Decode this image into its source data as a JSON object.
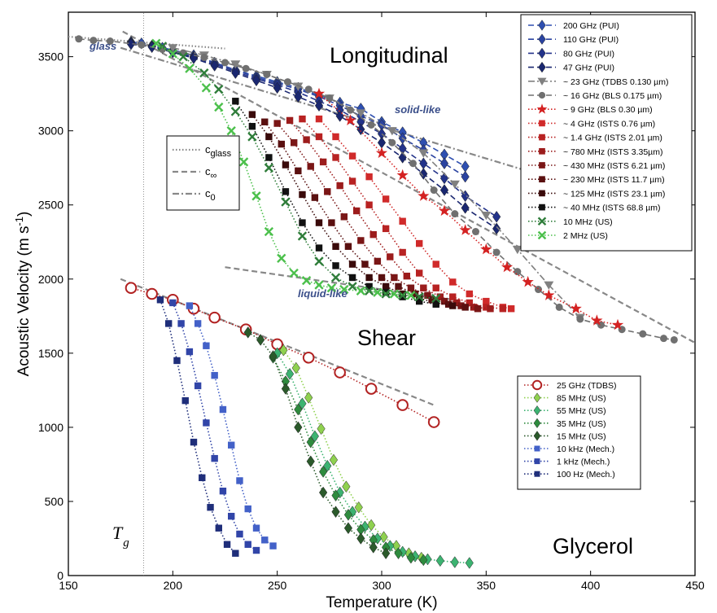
{
  "chart_data": {
    "type": "scatter",
    "xlabel": "Temperature  (K)",
    "ylabel_main": "Acoustic Velocity  (m s",
    "ylabel_sup": "-1",
    "ylabel_close": ")",
    "xlim": [
      150,
      450
    ],
    "ylim": [
      0,
      3800
    ],
    "xticks": [
      150,
      200,
      250,
      300,
      350,
      400,
      450
    ],
    "yticks": [
      0,
      500,
      1000,
      1500,
      2000,
      2500,
      3000,
      3500
    ],
    "grid": false,
    "labels": {
      "longitudinal": "Longitudinal",
      "shear": "Shear",
      "glycerol": "Glycerol",
      "glass": "glass",
      "solid_like": "solid-like",
      "liquid_like": "liquid-like",
      "tg_main": "T",
      "tg_sub": "g"
    },
    "tg": 186,
    "reference_lines": [
      {
        "name": "c_glass",
        "style": "dotted",
        "points": [
          [
            150,
            3635
          ],
          [
            225,
            3555
          ]
        ]
      },
      {
        "name": "c_inf_longitudinal",
        "style": "dashed",
        "points": [
          [
            176,
            3670
          ],
          [
            450,
            1570
          ]
        ]
      },
      {
        "name": "c_inf_shear",
        "style": "dashed",
        "points": [
          [
            175,
            2000
          ],
          [
            325,
            1150
          ]
        ]
      },
      {
        "name": "c_0",
        "style": "dashdot",
        "points": [
          [
            175,
            3560
          ],
          [
            400,
            2600
          ]
        ]
      },
      {
        "name": "liquid_like_line",
        "style": "dashed",
        "points": [
          [
            225,
            2080
          ],
          [
            335,
            1860
          ]
        ]
      }
    ],
    "line_legend": [
      {
        "label_main": "c",
        "label_sub": "glass",
        "style": "dotted"
      },
      {
        "label_main": "c",
        "label_sub": "∞",
        "style": "dashed"
      },
      {
        "label_main": "c",
        "label_sub": "0",
        "style": "dashdot"
      }
    ],
    "series": [
      {
        "name": "200 GHz  (PUI)",
        "group": "long",
        "color": "#2e4fb0",
        "marker": "diamond",
        "line": "dashed",
        "x": [
          180,
          185,
          190,
          195,
          200,
          210,
          220,
          230,
          240,
          250,
          260,
          270,
          280,
          290,
          300,
          310,
          320,
          330,
          340
        ],
        "y": [
          3600,
          3590,
          3575,
          3560,
          3545,
          3510,
          3460,
          3410,
          3370,
          3330,
          3290,
          3240,
          3190,
          3150,
          3060,
          2990,
          2920,
          2840,
          2760
        ]
      },
      {
        "name": "110 GHz  (PUI)",
        "group": "long",
        "color": "#2a43a0",
        "marker": "diamond",
        "line": "dashed",
        "x": [
          180,
          190,
          200,
          210,
          220,
          230,
          240,
          250,
          260,
          270,
          280,
          290,
          300,
          310,
          320,
          330,
          340
        ],
        "y": [
          3595,
          3570,
          3540,
          3500,
          3460,
          3410,
          3360,
          3320,
          3280,
          3230,
          3170,
          3100,
          3040,
          2950,
          2870,
          2780,
          2690
        ]
      },
      {
        "name": "80 GHz  (PUI)",
        "group": "long",
        "color": "#23338a",
        "marker": "diamond",
        "line": "dashed",
        "x": [
          180,
          190,
          200,
          210,
          220,
          230,
          240,
          250,
          260,
          270,
          280,
          290,
          300,
          310,
          320,
          330,
          340,
          355
        ],
        "y": [
          3590,
          3570,
          3535,
          3495,
          3450,
          3400,
          3350,
          3310,
          3260,
          3200,
          3140,
          3060,
          2980,
          2880,
          2780,
          2680,
          2560,
          2420
        ]
      },
      {
        "name": "47 GHz  (PUI)",
        "group": "long",
        "color": "#1a2770",
        "marker": "diamond",
        "line": "dashed",
        "x": [
          180,
          190,
          200,
          210,
          220,
          230,
          240,
          250,
          260,
          270,
          280,
          290,
          300,
          310,
          320,
          330,
          340,
          355
        ],
        "y": [
          3585,
          3565,
          3530,
          3490,
          3440,
          3390,
          3340,
          3290,
          3230,
          3170,
          3100,
          3010,
          2920,
          2820,
          2710,
          2600,
          2480,
          2340
        ]
      },
      {
        "name": "~ 23 GHz  (TDBS 0.130 µm)",
        "group": "long",
        "color": "#808080",
        "marker": "triangle",
        "line": "dashdot",
        "x": [
          200,
          215,
          230,
          245,
          260,
          275,
          290,
          305,
          320,
          335,
          350,
          365,
          380,
          395
        ],
        "y": [
          3560,
          3510,
          3450,
          3380,
          3300,
          3220,
          3120,
          3000,
          2850,
          2640,
          2430,
          2200,
          1960,
          1740
        ]
      },
      {
        "name": "~ 16 GHz  (BLS 0.175 µm)",
        "group": "long",
        "color": "#707070",
        "marker": "circle",
        "line": "dashed",
        "x": [
          155,
          162,
          170,
          185,
          195,
          205,
          215,
          225,
          235,
          245,
          255,
          265,
          275,
          285,
          295,
          305,
          315,
          325,
          335,
          345,
          355,
          365,
          375,
          385,
          395,
          405,
          415,
          425,
          435,
          440
        ],
        "y": [
          3620,
          3610,
          3605,
          3580,
          3550,
          3525,
          3495,
          3460,
          3420,
          3380,
          3330,
          3280,
          3220,
          3140,
          3040,
          2920,
          2780,
          2600,
          2440,
          2320,
          2180,
          2050,
          1930,
          1810,
          1730,
          1690,
          1660,
          1630,
          1600,
          1590
        ]
      },
      {
        "name": "~ 9 GHz  (BLS 0.30 µm)",
        "group": "long",
        "color": "#d42222",
        "marker": "star",
        "line": "dotted",
        "x": [
          270,
          285,
          300,
          310,
          320,
          330,
          340,
          350,
          360,
          370,
          380,
          393,
          403,
          413
        ],
        "y": [
          3250,
          3070,
          2850,
          2700,
          2560,
          2460,
          2330,
          2200,
          2080,
          1980,
          1890,
          1800,
          1720,
          1690
        ]
      },
      {
        "name": "~ 4 GHz  (ISTS 0.76 µm)",
        "group": "long",
        "color": "#d02a2a",
        "marker": "square",
        "line": "dotted",
        "x": [
          270,
          278,
          286,
          294,
          302,
          310,
          318,
          326,
          334,
          342,
          350,
          358,
          362
        ],
        "y": [
          3080,
          2960,
          2830,
          2690,
          2540,
          2390,
          2240,
          2100,
          1980,
          1900,
          1850,
          1810,
          1800
        ]
      },
      {
        "name": "~ 1.4 GHz  (ISTS 2.01 µm)",
        "group": "long",
        "color": "#b82222",
        "marker": "square",
        "line": "dotted",
        "x": [
          262,
          270,
          278,
          286,
          294,
          302,
          310,
          318,
          326,
          334,
          342,
          350,
          358
        ],
        "y": [
          3080,
          2960,
          2820,
          2660,
          2500,
          2340,
          2180,
          2040,
          1940,
          1880,
          1840,
          1810,
          1800
        ]
      },
      {
        "name": "~ 780 MHz  (ISTS 3.35µm)",
        "group": "long",
        "color": "#9c1c1c",
        "marker": "square",
        "line": "dotted",
        "x": [
          256,
          264,
          272,
          280,
          288,
          296,
          304,
          312,
          320,
          328,
          336,
          344,
          352
        ],
        "y": [
          3070,
          2940,
          2790,
          2630,
          2460,
          2300,
          2150,
          2020,
          1940,
          1880,
          1840,
          1810,
          1800
        ]
      },
      {
        "name": "~ 430 MHz  (ISTS 6.21 µm)",
        "group": "long",
        "color": "#7a1616",
        "marker": "square",
        "line": "dotted",
        "x": [
          250,
          258,
          266,
          274,
          282,
          290,
          298,
          306,
          314,
          322,
          330,
          338,
          346
        ],
        "y": [
          3050,
          2920,
          2760,
          2590,
          2420,
          2260,
          2120,
          2010,
          1940,
          1890,
          1850,
          1820,
          1800
        ]
      },
      {
        "name": "~ 230 MHz  (ISTS 11.7 µm)",
        "group": "long",
        "color": "#5a1010",
        "marker": "square",
        "line": "dotted",
        "x": [
          244,
          252,
          260,
          268,
          276,
          284,
          292,
          300,
          308,
          316,
          324,
          332,
          340
        ],
        "y": [
          3060,
          2910,
          2730,
          2550,
          2380,
          2220,
          2100,
          2010,
          1950,
          1900,
          1860,
          1830,
          1810
        ]
      },
      {
        "name": "~ 125 MHz  (ISTS 23.1 µm)",
        "group": "long",
        "color": "#3a0a0a",
        "marker": "square",
        "line": "dotted",
        "x": [
          238,
          246,
          254,
          262,
          270,
          278,
          286,
          294,
          302,
          310,
          318,
          326,
          334
        ],
        "y": [
          3110,
          2960,
          2770,
          2570,
          2380,
          2220,
          2100,
          2010,
          1950,
          1900,
          1870,
          1840,
          1820
        ]
      },
      {
        "name": "~ 40 MHz  (ISTS 68.8 µm)",
        "group": "long",
        "color": "#111111",
        "marker": "square",
        "line": "dotted",
        "x": [
          230,
          238,
          246,
          254,
          262,
          270,
          278,
          286,
          294,
          302,
          310,
          318,
          326
        ],
        "y": [
          3200,
          3030,
          2820,
          2590,
          2380,
          2210,
          2090,
          2010,
          1950,
          1910,
          1880,
          1850,
          1830
        ]
      },
      {
        "name": "10 MHz  (US)",
        "group": "long",
        "color": "#2f7d3a",
        "marker": "x",
        "line": "dotted",
        "x": [
          195,
          205,
          215,
          222,
          230,
          238,
          246,
          254,
          262,
          270,
          278,
          286,
          294,
          302,
          310,
          318,
          326
        ],
        "y": [
          3570,
          3500,
          3390,
          3280,
          3130,
          2960,
          2750,
          2520,
          2290,
          2120,
          2010,
          1950,
          1920,
          1900,
          1890,
          1880,
          1870
        ]
      },
      {
        "name": "2 MHz  (US)",
        "group": "long",
        "color": "#4cc04c",
        "marker": "x",
        "line": "dotted",
        "x": [
          192,
          200,
          208,
          216,
          222,
          228,
          234,
          240,
          246,
          252,
          258,
          264,
          270,
          276,
          282,
          290,
          298,
          306,
          314
        ],
        "y": [
          3590,
          3520,
          3420,
          3290,
          3160,
          3000,
          2790,
          2560,
          2320,
          2140,
          2040,
          1990,
          1960,
          1940,
          1930,
          1920,
          1910,
          1900,
          1890
        ]
      },
      {
        "name": "25 GHz (TDBS)",
        "group": "shear",
        "color": "#b22222",
        "marker": "opencircle",
        "line": "dotted",
        "x": [
          180,
          190,
          200,
          210,
          220,
          235,
          250,
          265,
          280,
          295,
          310,
          325
        ],
        "y": [
          1940,
          1900,
          1860,
          1800,
          1740,
          1660,
          1560,
          1470,
          1370,
          1260,
          1150,
          1035
        ]
      },
      {
        "name": "85 MHz  (US)",
        "group": "shear",
        "color": "#8fd14f",
        "marker": "diamond",
        "line": "dotted",
        "x": [
          253,
          259,
          265,
          271,
          277,
          283,
          289,
          295,
          301,
          307,
          313,
          319
        ],
        "y": [
          1520,
          1400,
          1200,
          990,
          780,
          600,
          460,
          340,
          260,
          200,
          150,
          120
        ]
      },
      {
        "name": "55 MHz  (US)",
        "group": "shear",
        "color": "#3cb371",
        "marker": "diamond",
        "line": "dotted",
        "x": [
          250,
          256,
          262,
          268,
          274,
          280,
          286,
          292,
          298,
          304,
          310,
          316,
          322,
          328,
          335,
          342
        ],
        "y": [
          1500,
          1360,
          1160,
          940,
          740,
          560,
          430,
          330,
          250,
          200,
          160,
          130,
          110,
          100,
          90,
          85
        ]
      },
      {
        "name": "35 MHz  (US)",
        "group": "shear",
        "color": "#2e8b3e",
        "marker": "diamond",
        "line": "dotted",
        "x": [
          248,
          254,
          260,
          266,
          272,
          278,
          284,
          290,
          296,
          302,
          308,
          314,
          320
        ],
        "y": [
          1470,
          1310,
          1120,
          900,
          700,
          540,
          410,
          310,
          240,
          190,
          150,
          120,
          105
        ]
      },
      {
        "name": "15 MHz  (US)",
        "group": "shear",
        "color": "#2b5a2b",
        "marker": "diamond",
        "line": "dotted",
        "x": [
          236,
          242,
          248,
          254,
          260,
          266,
          272,
          278,
          284,
          290,
          296,
          302
        ],
        "y": [
          1640,
          1590,
          1480,
          1260,
          1000,
          770,
          560,
          430,
          320,
          250,
          190,
          150
        ]
      },
      {
        "name": "10 kHz  (Mech.)",
        "group": "shear",
        "color": "#4361c8",
        "marker": "square",
        "line": "dotted",
        "x": [
          208,
          212,
          216,
          220,
          224,
          228,
          232,
          236,
          240,
          244,
          248
        ],
        "y": [
          1820,
          1700,
          1550,
          1350,
          1120,
          880,
          640,
          450,
          320,
          240,
          200
        ]
      },
      {
        "name": "1 kHz  (Mech.)",
        "group": "shear",
        "color": "#3145a8",
        "marker": "square",
        "line": "dotted",
        "x": [
          200,
          204,
          208,
          212,
          216,
          220,
          224,
          228,
          232,
          236,
          240
        ],
        "y": [
          1840,
          1700,
          1510,
          1280,
          1030,
          790,
          570,
          400,
          280,
          210,
          170
        ]
      },
      {
        "name": "100 Hz  (Mech.)",
        "group": "shear",
        "color": "#1f2e7a",
        "marker": "square",
        "line": "dotted",
        "x": [
          194,
          198,
          202,
          206,
          210,
          214,
          218,
          222,
          226,
          230
        ],
        "y": [
          1860,
          1700,
          1450,
          1180,
          900,
          660,
          460,
          320,
          210,
          150
        ]
      }
    ]
  }
}
